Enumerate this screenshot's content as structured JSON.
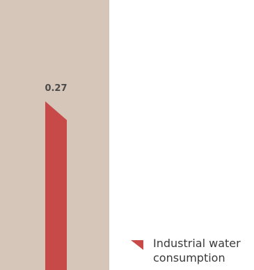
{
  "chart_data": {
    "type": "bar",
    "series": [
      {
        "name": "Industrial water consumption",
        "values": [
          0.27
        ]
      }
    ],
    "data_labels": [
      "0.27"
    ],
    "colors": {
      "background_panel": "#d6c6b9",
      "bar": "#c84a48"
    },
    "legend": "bottom-right"
  }
}
